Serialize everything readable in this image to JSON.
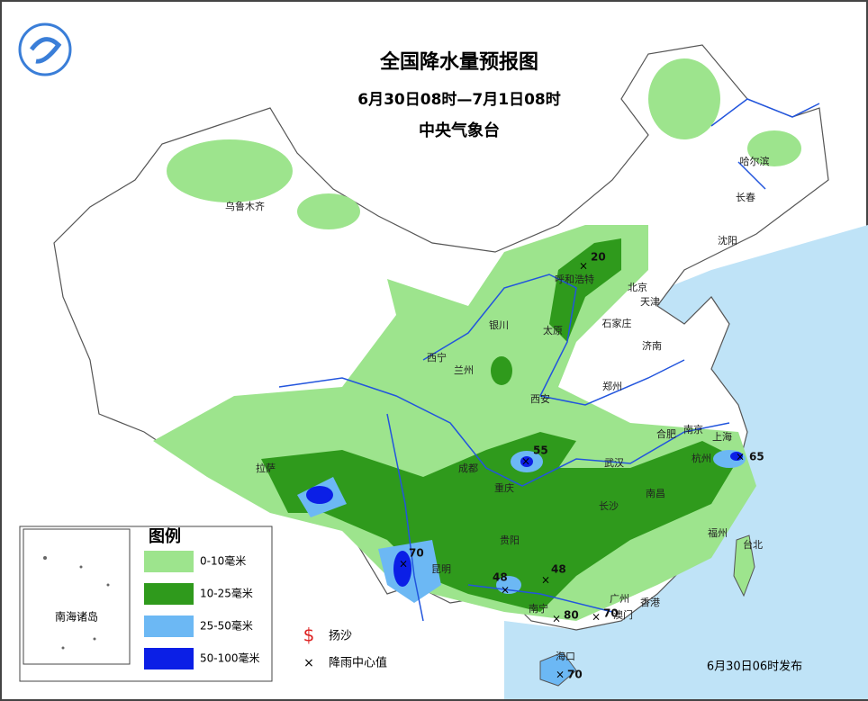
{
  "header": {
    "title": "全国降水量预报图",
    "subtitle": "6月30日08时—7月1日08时",
    "issuer": "中央气象台"
  },
  "cities": [
    "乌鲁木齐",
    "哈尔滨",
    "长春",
    "沈阳",
    "呼和浩特",
    "北京",
    "天津",
    "石家庄",
    "太原",
    "济南",
    "银川",
    "西宁",
    "兰州",
    "西安",
    "郑州",
    "合肥",
    "南京",
    "上海",
    "杭州",
    "武汉",
    "成都",
    "重庆",
    "拉萨",
    "长沙",
    "南昌",
    "贵阳",
    "昆明",
    "南宁",
    "广州",
    "香港",
    "澳门",
    "海口",
    "福州",
    "台北"
  ],
  "rain_centers": [
    20,
    55,
    65,
    70,
    48,
    48,
    80,
    70,
    70
  ],
  "legend": {
    "title": "图例",
    "items": [
      {
        "label": "0-10毫米",
        "color": "#9de48d"
      },
      {
        "label": "10-25毫米",
        "color": "#2f9a1c"
      },
      {
        "label": "25-50毫米",
        "color": "#6cb8f4"
      },
      {
        "label": "50-100毫米",
        "color": "#0b1fe6"
      }
    ],
    "symbols": [
      "扬沙",
      "降雨中心值"
    ]
  },
  "inset": "南海诸岛",
  "footer": "6月30日06时发布"
}
